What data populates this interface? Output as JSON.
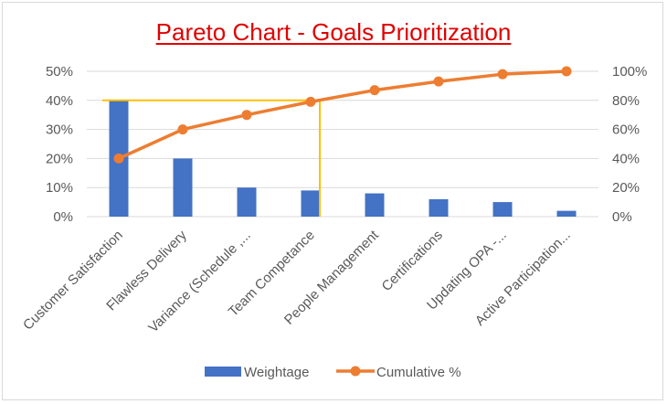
{
  "chart_data": {
    "type": "bar",
    "title": "Pareto Chart - Goals Prioritization",
    "categories": [
      "Customer Satisfaction",
      "Flawless Delivery",
      "Variance (Schedule ,...",
      "Team Competance",
      "People Management",
      "Certifications",
      "Updating OPA -...",
      "Active Participation..."
    ],
    "series": [
      {
        "name": "Weightage",
        "type": "bar",
        "axis": "left",
        "color": "#4472c4",
        "values": [
          40,
          20,
          10,
          9,
          8,
          6,
          5,
          2
        ]
      },
      {
        "name": "Cumulative %",
        "type": "line",
        "axis": "right",
        "color": "#ed7d31",
        "values": [
          40,
          60,
          70,
          79,
          87,
          93,
          98,
          100
        ]
      }
    ],
    "ylim_left": [
      0,
      50
    ],
    "yticks_left": [
      "0%",
      "10%",
      "20%",
      "30%",
      "40%",
      "50%"
    ],
    "ylim_right": [
      0,
      100
    ],
    "yticks_right": [
      "0%",
      "20%",
      "40%",
      "60%",
      "80%",
      "100%"
    ],
    "cutoff_line": {
      "value": 80,
      "axis": "right",
      "color": "#ffc000"
    },
    "grid": true,
    "legend": "bottom"
  }
}
